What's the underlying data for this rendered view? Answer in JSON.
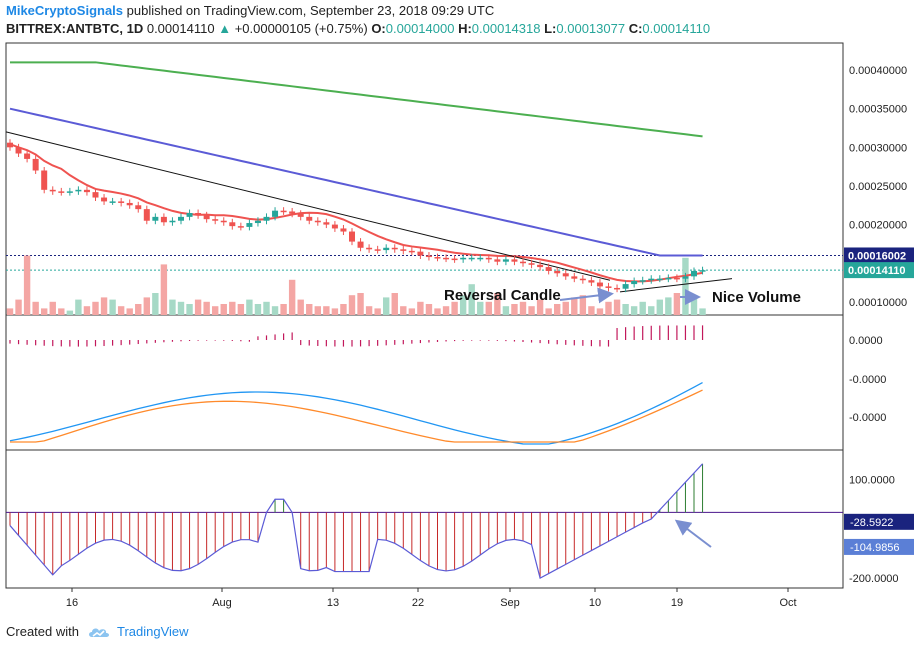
{
  "header": {
    "author": "MikeCryptoSignals",
    "published_text": "published on TradingView.com, September 23, 2018 09:29 UTC",
    "symbol": "BITTREX:ANTBTC, 1D",
    "last": "0.00014110",
    "arrow": "▲",
    "change": "+0.00000105 (+0.75%)",
    "open_label": "O:",
    "open": "0.00014000",
    "high_label": "H:",
    "high": "0.00014318",
    "low_label": "L:",
    "low": "0.00013077",
    "close_label": "C:",
    "close": "0.00014110"
  },
  "footer": {
    "created_with": "Created with",
    "brand": "TradingView"
  },
  "colors": {
    "up": "#26a69a",
    "down": "#ef5350",
    "ma_green": "#4caf50",
    "ma_blue": "#5b5bd6",
    "ma_red": "#ef5350",
    "macd": "#2196f3",
    "signal": "#ff8a2b",
    "navy": "#1a237e"
  },
  "chart_data": [
    {
      "type": "candlestick",
      "panel": "price",
      "x_tick_labels": [
        "16",
        "Aug",
        "13",
        "22",
        "Sep",
        "10",
        "19",
        "Oct"
      ],
      "y_tick_labels": [
        "0.00040000",
        "0.00035000",
        "0.00030000",
        "0.00025000",
        "0.00020000",
        "0.00010000"
      ],
      "ylim": [
        8.3e-05,
        0.000435
      ],
      "price_labels": [
        {
          "text": "0.00016002",
          "value": 0.00016002,
          "color": "#1a237e"
        },
        {
          "text": "0.00014110",
          "value": 0.0001411,
          "color": "#26a69a"
        }
      ],
      "annotations": [
        "Reversal Candle",
        "Nice Volume"
      ],
      "ohlc_close": [
        0.0003,
        0.000292,
        0.000285,
        0.00027,
        0.000245,
        0.000243,
        0.000242,
        0.000243,
        0.000245,
        0.000242,
        0.000235,
        0.00023,
        0.00023,
        0.000228,
        0.000225,
        0.00022,
        0.000205,
        0.00021,
        0.000203,
        0.000205,
        0.00021,
        0.000215,
        0.000212,
        0.000207,
        0.000205,
        0.000203,
        0.000198,
        0.000197,
        0.000202,
        0.000205,
        0.00021,
        0.000218,
        0.000217,
        0.000214,
        0.00021,
        0.000205,
        0.000203,
        0.0002,
        0.000195,
        0.000191,
        0.000178,
        0.00017,
        0.000168,
        0.000167,
        0.00017,
        0.000168,
        0.000166,
        0.000165,
        0.00016,
        0.000158,
        0.000157,
        0.000156,
        0.000155,
        0.000157,
        0.000157,
        0.000157,
        0.000155,
        0.000152,
        0.000155,
        0.000152,
        0.00015,
        0.000148,
        0.000145,
        0.00014,
        0.000137,
        0.000133,
        0.00013,
        0.000128,
        0.000125,
        0.00012,
        0.000118,
        0.000117,
        0.000123,
        0.000127,
        0.000128,
        0.00013,
        0.00013,
        0.000131,
        0.00013,
        0.000133,
        0.00014,
        0.000141
      ]
    },
    {
      "type": "line",
      "panel": "macd",
      "y_tick_labels": [
        "0.0000",
        "-0.0000",
        "-0.0000"
      ],
      "series": []
    },
    {
      "type": "line",
      "panel": "oscillator",
      "y_tick_labels": [
        "100.0000",
        "-200.0000"
      ],
      "value_labels": [
        {
          "text": "-28.5922",
          "value": -28.5922,
          "color": "#1a237e"
        },
        {
          "text": "-104.9856",
          "value": -104.9856,
          "color": "#5b7fd6"
        }
      ],
      "ylim": [
        -230,
        190
      ]
    }
  ]
}
